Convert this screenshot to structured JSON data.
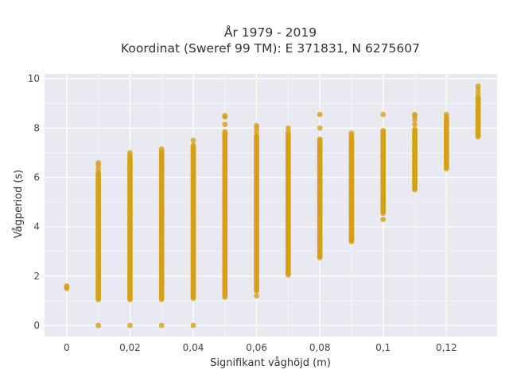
{
  "chart_data": {
    "type": "scatter",
    "title_lines": [
      "År 1979 - 2019",
      "Koordinat (Sweref 99 TM): E 371831, N 6275607"
    ],
    "xlabel": "Signifikant våghöjd (m)",
    "ylabel": "Vågperiod (s)",
    "xlim": [
      -0.007,
      0.136
    ],
    "ylim": [
      -0.45,
      10.2
    ],
    "x_ticks": [
      {
        "value": 0,
        "label": "0"
      },
      {
        "value": 0.02,
        "label": "0,02"
      },
      {
        "value": 0.04,
        "label": "0,04"
      },
      {
        "value": 0.06,
        "label": "0,06"
      },
      {
        "value": 0.08,
        "label": "0,08"
      },
      {
        "value": 0.1,
        "label": "0,1"
      },
      {
        "value": 0.12,
        "label": "0,12"
      }
    ],
    "y_ticks": [
      {
        "value": 0,
        "label": "0"
      },
      {
        "value": 2,
        "label": "2"
      },
      {
        "value": 4,
        "label": "4"
      },
      {
        "value": 6,
        "label": "6"
      },
      {
        "value": 8,
        "label": "8"
      },
      {
        "value": 10,
        "label": "10"
      }
    ],
    "grid": true,
    "legend": "none",
    "marker_color": "#d4a017",
    "background_color": "#e9e9f2",
    "columns": [
      {
        "x": 0,
        "y_range": [
          1.5,
          1.6
        ],
        "extra_y": []
      },
      {
        "x": 0.01,
        "y_range": [
          1.05,
          6.2
        ],
        "extra_y": [
          0,
          6.35,
          6.5,
          6.6
        ]
      },
      {
        "x": 0.02,
        "y_range": [
          1.05,
          6.8
        ],
        "extra_y": [
          0,
          6.9,
          7.0
        ]
      },
      {
        "x": 0.03,
        "y_range": [
          1.05,
          7.05
        ],
        "extra_y": [
          0,
          7.15
        ]
      },
      {
        "x": 0.04,
        "y_range": [
          1.1,
          7.3
        ],
        "extra_y": [
          0,
          7.5
        ]
      },
      {
        "x": 0.05,
        "y_range": [
          1.15,
          7.85
        ],
        "extra_y": [
          8.15,
          8.45,
          8.5
        ]
      },
      {
        "x": 0.06,
        "y_range": [
          1.4,
          7.7
        ],
        "extra_y": [
          1.2,
          7.85,
          8.0,
          8.1
        ]
      },
      {
        "x": 0.07,
        "y_range": [
          2.05,
          7.75
        ],
        "extra_y": [
          7.85,
          8.0
        ]
      },
      {
        "x": 0.08,
        "y_range": [
          2.75,
          7.55
        ],
        "extra_y": [
          8.0,
          8.55
        ]
      },
      {
        "x": 0.09,
        "y_range": [
          3.4,
          7.7
        ],
        "extra_y": [
          7.8
        ]
      },
      {
        "x": 0.1,
        "y_range": [
          4.55,
          7.9
        ],
        "extra_y": [
          4.3,
          8.55
        ]
      },
      {
        "x": 0.11,
        "y_range": [
          5.5,
          7.95
        ],
        "extra_y": [
          8.15,
          8.35,
          8.5,
          8.55
        ]
      },
      {
        "x": 0.12,
        "y_range": [
          6.35,
          8.35
        ],
        "extra_y": [
          8.45,
          8.55
        ]
      },
      {
        "x": 0.13,
        "y_range": [
          7.65,
          9.25
        ],
        "extra_y": [
          9.4,
          9.55,
          9.7
        ]
      }
    ]
  }
}
